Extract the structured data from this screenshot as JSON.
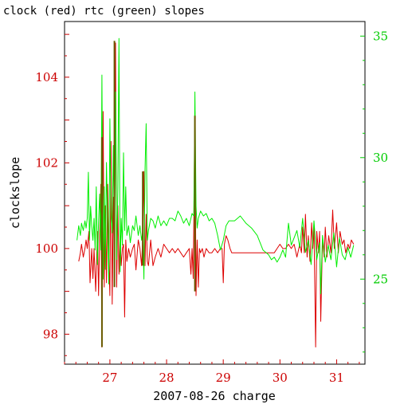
{
  "chart_data": {
    "type": "line",
    "title": "clock (red) rtc (green) slopes",
    "xlabel": "2007-08-26 charge",
    "ylabel": "clockslope",
    "xlim": [
      26.2,
      31.5
    ],
    "ylim_left": [
      97.3,
      105.3
    ],
    "ylim_right": [
      21.5,
      35.6
    ],
    "x_ticks": [
      27,
      28,
      29,
      30,
      31
    ],
    "x_tick_labels": [
      "27",
      "28",
      "29",
      "30",
      "31"
    ],
    "y_left_ticks": [
      98,
      100,
      102,
      104
    ],
    "y_left_tick_labels": [
      "98",
      "100",
      "102",
      "104"
    ],
    "y_right_ticks": [
      25,
      30,
      35
    ],
    "y_right_tick_labels": [
      "25",
      "30",
      "35"
    ],
    "colors": {
      "clock": "#dd0000",
      "rtc": "#00ee00",
      "overlap": "#6a5a00",
      "axis_left": "#cc0000",
      "axis_right": "#00cc00",
      "frame": "#000000"
    },
    "series": [
      {
        "key": "clock",
        "axis": "left",
        "x": [
          26.45,
          26.48,
          26.5,
          26.53,
          26.56,
          26.58,
          26.6,
          26.63,
          26.65,
          26.68,
          26.7,
          26.72,
          26.75,
          26.78,
          26.8,
          26.82,
          26.84,
          26.86,
          26.88,
          26.9,
          26.92,
          26.94,
          26.96,
          26.98,
          27.0,
          27.02,
          27.04,
          27.06,
          27.08,
          27.1,
          27.12,
          27.14,
          27.16,
          27.18,
          27.2,
          27.22,
          27.24,
          27.26,
          27.28,
          27.3,
          27.33,
          27.36,
          27.4,
          27.43,
          27.46,
          27.5,
          27.53,
          27.56,
          27.58,
          27.6,
          27.62,
          27.64,
          27.66,
          27.68,
          27.72,
          27.76,
          27.8,
          27.85,
          27.9,
          27.95,
          28.0,
          28.05,
          28.1,
          28.15,
          28.2,
          28.25,
          28.3,
          28.35,
          28.4,
          28.43,
          28.45,
          28.47,
          28.5,
          28.52,
          28.54,
          28.56,
          28.58,
          28.6,
          28.63,
          28.66,
          28.7,
          28.75,
          28.8,
          28.85,
          28.9,
          28.95,
          28.98,
          29.0,
          29.02,
          29.05,
          29.08,
          29.12,
          29.15,
          29.2,
          29.3,
          29.4,
          29.5,
          29.6,
          29.7,
          29.8,
          29.9,
          29.95,
          30.0,
          30.05,
          30.1,
          30.15,
          30.2,
          30.25,
          30.3,
          30.35,
          30.38,
          30.4,
          30.43,
          30.45,
          30.48,
          30.5,
          30.53,
          30.56,
          30.58,
          30.6,
          30.63,
          30.65,
          30.68,
          30.7,
          30.72,
          30.75,
          30.78,
          30.8,
          30.83,
          30.86,
          30.9,
          30.93,
          30.96,
          31.0,
          31.03,
          31.06,
          31.1,
          31.13,
          31.16,
          31.2,
          31.23,
          31.26,
          31.3
        ],
        "y": [
          99.7,
          99.9,
          100.1,
          99.8,
          100.0,
          100.2,
          100.0,
          100.4,
          99.2,
          100.0,
          99.3,
          100.0,
          99.0,
          100.4,
          98.9,
          100.3,
          101.5,
          97.7,
          103.2,
          99.1,
          101.0,
          99.2,
          101.5,
          99.8,
          98.9,
          102.5,
          98.7,
          101.2,
          99.5,
          104.8,
          99.1,
          101.0,
          99.4,
          100.3,
          99.6,
          100.0,
          100.1,
          98.4,
          100.2,
          99.7,
          100.0,
          99.8,
          100.0,
          100.1,
          99.5,
          100.2,
          100.0,
          99.6,
          100.3,
          101.8,
          99.6,
          100.8,
          99.7,
          99.6,
          100.2,
          99.6,
          99.8,
          100.0,
          99.8,
          100.1,
          100.0,
          99.9,
          100.0,
          99.9,
          100.0,
          99.9,
          99.8,
          99.9,
          100.0,
          99.4,
          100.0,
          99.3,
          103.2,
          98.9,
          100.2,
          99.1,
          100.0,
          99.9,
          100.0,
          99.8,
          100.0,
          99.9,
          99.9,
          100.0,
          99.9,
          100.0,
          100.0,
          99.2,
          100.1,
          100.3,
          100.2,
          100.0,
          99.9,
          99.9,
          99.9,
          99.9,
          99.9,
          99.9,
          99.9,
          99.9,
          99.9,
          100.0,
          100.1,
          100.0,
          100.0,
          100.1,
          100.0,
          100.1,
          99.8,
          100.1,
          99.9,
          100.5,
          99.9,
          100.8,
          99.8,
          100.3,
          99.7,
          100.6,
          100.0,
          100.5,
          97.7,
          100.4,
          99.9,
          100.4,
          98.3,
          100.2,
          99.8,
          100.5,
          99.8,
          100.3,
          99.9,
          100.9,
          100.0,
          100.6,
          99.9,
          100.4,
          100.1,
          100.2,
          99.9,
          100.1,
          100.0,
          100.2,
          100.1
        ]
      },
      {
        "key": "rtc",
        "axis": "right",
        "x": [
          26.42,
          26.45,
          26.48,
          26.5,
          26.53,
          26.56,
          26.58,
          26.6,
          26.62,
          26.64,
          26.66,
          26.68,
          26.7,
          26.72,
          26.74,
          26.76,
          26.78,
          26.8,
          26.82,
          26.84,
          26.86,
          26.88,
          26.9,
          26.92,
          26.94,
          26.96,
          26.98,
          27.0,
          27.02,
          27.04,
          27.06,
          27.08,
          27.1,
          27.12,
          27.14,
          27.16,
          27.18,
          27.2,
          27.22,
          27.24,
          27.26,
          27.28,
          27.3,
          27.33,
          27.36,
          27.4,
          27.43,
          27.46,
          27.5,
          27.53,
          27.56,
          27.58,
          27.6,
          27.62,
          27.64,
          27.66,
          27.68,
          27.72,
          27.76,
          27.8,
          27.85,
          27.9,
          27.95,
          28.0,
          28.05,
          28.1,
          28.15,
          28.2,
          28.25,
          28.3,
          28.35,
          28.4,
          28.45,
          28.48,
          28.5,
          28.52,
          28.54,
          28.56,
          28.6,
          28.65,
          28.7,
          28.75,
          28.8,
          28.85,
          28.9,
          28.95,
          29.0,
          29.05,
          29.1,
          29.2,
          29.3,
          29.4,
          29.5,
          29.6,
          29.7,
          29.8,
          29.85,
          29.9,
          29.95,
          30.0,
          30.05,
          30.1,
          30.15,
          30.2,
          30.25,
          30.3,
          30.35,
          30.4,
          30.45,
          30.5,
          30.55,
          30.6,
          30.65,
          30.7,
          30.72,
          30.75,
          30.8,
          30.85,
          30.9,
          30.95,
          31.0,
          31.05,
          31.1,
          31.15,
          31.2,
          31.25,
          31.3
        ],
        "y": [
          26.6,
          27.2,
          26.8,
          27.3,
          27.0,
          27.4,
          27.1,
          27.5,
          29.4,
          26.6,
          28.0,
          27.2,
          26.6,
          27.5,
          26.2,
          28.8,
          25.6,
          27.4,
          28.5,
          26.2,
          33.4,
          25.0,
          28.8,
          25.4,
          29.8,
          27.2,
          24.8,
          31.6,
          27.6,
          26.9,
          30.5,
          26.4,
          32.7,
          25.8,
          28.8,
          34.9,
          25.3,
          27.5,
          26.4,
          30.2,
          27.0,
          28.8,
          26.8,
          27.2,
          26.5,
          27.2,
          27.0,
          27.6,
          26.8,
          27.2,
          26.6,
          27.0,
          25.0,
          29.5,
          31.4,
          26.6,
          27.0,
          27.5,
          27.4,
          27.1,
          27.6,
          27.2,
          27.4,
          27.2,
          27.5,
          27.5,
          27.4,
          27.8,
          27.6,
          27.3,
          27.5,
          27.2,
          27.7,
          27.6,
          32.7,
          28.0,
          27.1,
          27.5,
          27.8,
          27.6,
          27.7,
          27.4,
          27.5,
          27.3,
          26.8,
          26.2,
          26.6,
          27.2,
          27.4,
          27.4,
          27.6,
          27.3,
          27.1,
          26.8,
          26.2,
          26.0,
          25.8,
          25.9,
          25.7,
          25.9,
          26.2,
          25.9,
          27.3,
          26.4,
          26.7,
          27.0,
          26.3,
          27.5,
          26.1,
          26.6,
          25.6,
          27.4,
          25.8,
          26.5,
          24.4,
          26.8,
          25.7,
          26.4,
          25.8,
          26.9,
          25.5,
          26.7,
          26.0,
          25.8,
          26.3,
          25.9,
          26.4
        ]
      }
    ],
    "overlap_spikes": [
      {
        "x": 26.86,
        "y_top": 102.6,
        "y_bottom": 97.7
      },
      {
        "x": 27.08,
        "y_top": 104.85,
        "y_bottom": 99.1
      },
      {
        "x": 27.58,
        "y_top": 101.8,
        "y_bottom": 99.6
      },
      {
        "x": 28.5,
        "y_top": 103.1,
        "y_bottom": 99.0
      }
    ]
  }
}
